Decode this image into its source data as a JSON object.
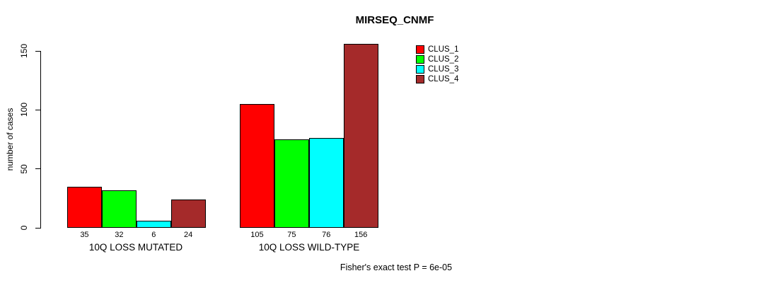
{
  "title": "MIRSEQ_CNMF",
  "footer_note": "Fisher's exact test P = 6e-05",
  "chart_data": {
    "type": "bar",
    "title": "MIRSEQ_CNMF",
    "xlabel": "",
    "ylabel": "number of cases",
    "ylim": [
      0,
      150
    ],
    "yticks": [
      0,
      50,
      100,
      150
    ],
    "grid": false,
    "legend_position": "top-right",
    "categories": [
      "10Q LOSS MUTATED",
      "10Q LOSS WILD-TYPE"
    ],
    "series": [
      {
        "name": "CLUS_1",
        "color": "#FF0000",
        "values": [
          35,
          105
        ]
      },
      {
        "name": "CLUS_2",
        "color": "#00FF00",
        "values": [
          32,
          75
        ]
      },
      {
        "name": "CLUS_3",
        "color": "#00FFFF",
        "values": [
          6,
          76
        ]
      },
      {
        "name": "CLUS_4",
        "color": "#A52A2A",
        "values": [
          24,
          156
        ]
      }
    ],
    "bar_value_labels": [
      [
        35,
        32,
        6,
        24
      ],
      [
        105,
        75,
        76,
        156
      ]
    ],
    "annotation": "Fisher's exact test P = 6e-05"
  }
}
